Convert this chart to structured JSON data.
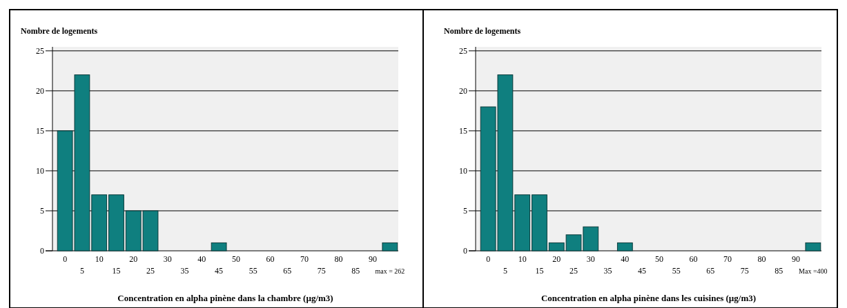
{
  "chart_data": [
    {
      "type": "bar",
      "ylabel": "Nombre de logements",
      "xlabel": "Concentration en alpha pinène dans la chambre (µg/m3)",
      "categories": [
        "0",
        "5",
        "10",
        "15",
        "20",
        "25",
        "30",
        "35",
        "40",
        "45",
        "50",
        "55",
        "60",
        "65",
        "70",
        "75",
        "80",
        "85",
        "90",
        "max = 262"
      ],
      "values": [
        15,
        22,
        7,
        7,
        5,
        5,
        0,
        0,
        0,
        1,
        0,
        0,
        0,
        0,
        0,
        0,
        0,
        0,
        0,
        1
      ],
      "color": "#0f7f7f",
      "ylim": [
        0,
        25.5
      ],
      "yticks": [
        0,
        5,
        10,
        15,
        20,
        25
      ],
      "grid": "y"
    },
    {
      "type": "bar",
      "ylabel": "Nombre de logements",
      "xlabel": "Concentration en alpha pinène dans les cuisines (µg/m3)",
      "categories": [
        "0",
        "5",
        "10",
        "15",
        "20",
        "25",
        "30",
        "35",
        "40",
        "45",
        "50",
        "55",
        "60",
        "65",
        "70",
        "75",
        "80",
        "85",
        "90",
        "Max =400"
      ],
      "values": [
        18,
        22,
        7,
        7,
        1,
        2,
        3,
        0,
        1,
        0,
        0,
        0,
        0,
        0,
        0,
        0,
        0,
        0,
        0,
        1
      ],
      "color": "#0f7f7f",
      "ylim": [
        0,
        25.5
      ],
      "yticks": [
        0,
        5,
        10,
        15,
        20,
        25
      ],
      "grid": "y"
    }
  ]
}
